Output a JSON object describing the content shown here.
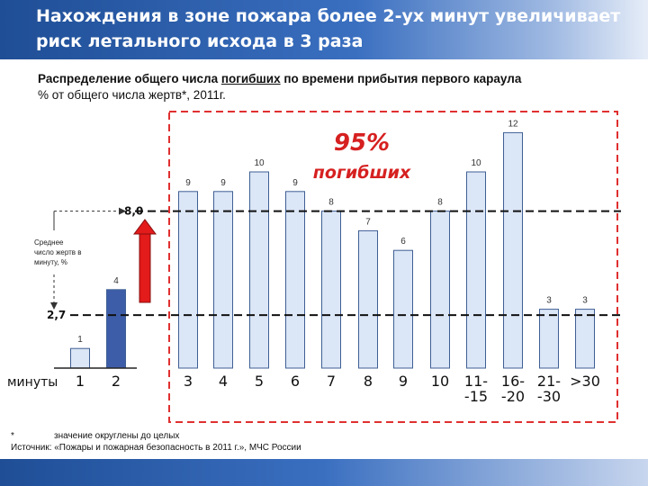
{
  "header": {
    "title": "Нахождения в зоне пожара более 2-ух минут увеличивает риск летального исхода в 3 раза"
  },
  "subtitle": {
    "line1_prefix": "Распределение общего числа ",
    "line1_underlined": "погибших",
    "line1_suffix": " по времени прибытия первого караула",
    "line2": "% от общего числа жертв*, 2011г."
  },
  "annotations": {
    "percent": "95%",
    "percent_caption": "погибших",
    "avg_label": "Среднее число жертв в минуту, %",
    "avg_value": "8,0",
    "reduced_value": "2,7",
    "xaxis_unit": "минуты"
  },
  "footnote": {
    "star": "*",
    "text": "значение округлены до целых",
    "source": "Источник: «Пожары и пожарная безопасность в 2011 г.», МЧС России"
  },
  "colors": {
    "bar_fill": "#dbe6f6",
    "bar_stroke": "#3f5f94",
    "highlight_bar": "#3e5da8",
    "arrow": "#e31b1b",
    "dashed_box": "#e03030",
    "header": "#2a5ca8"
  },
  "chart_data": {
    "type": "bar",
    "categories": [
      "1",
      "2",
      "3",
      "4",
      "5",
      "6",
      "7",
      "8",
      "9",
      "10",
      "11--15",
      "16--20",
      "21--30",
      ">30"
    ],
    "category_lines": [
      [
        "1"
      ],
      [
        "2"
      ],
      [
        "3"
      ],
      [
        "4"
      ],
      [
        "5"
      ],
      [
        "6"
      ],
      [
        "7"
      ],
      [
        "8"
      ],
      [
        "9"
      ],
      [
        "10"
      ],
      [
        "11-",
        "-15"
      ],
      [
        "16-",
        "-20"
      ],
      [
        "21-",
        "-30"
      ],
      [
        ">30"
      ]
    ],
    "values": [
      1,
      4,
      9,
      9,
      10,
      9,
      8,
      7,
      6,
      8,
      10,
      12,
      3,
      3
    ],
    "value_labels": [
      "1",
      "4",
      "9",
      "9",
      "10",
      "9",
      "8",
      "7",
      "6",
      "8",
      "10",
      "12",
      "3",
      "3"
    ],
    "highlighted_category": "2",
    "reference_lines": [
      {
        "value": 8.0,
        "label": "8,0"
      },
      {
        "value": 2.7,
        "label": "2,7"
      }
    ],
    "ylim": [
      0,
      12
    ],
    "grid": false,
    "legend": "none"
  }
}
